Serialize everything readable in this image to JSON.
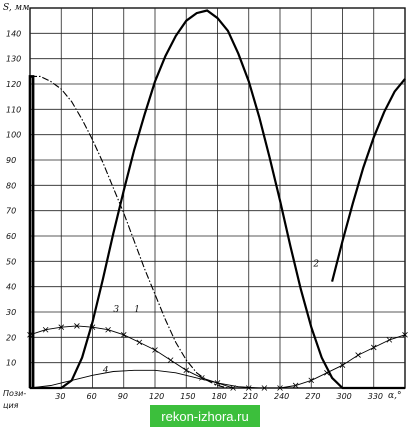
{
  "chart_data": {
    "type": "line",
    "ylabel": "S, мм",
    "xlabel": "α,°",
    "x_axis_caption": "Пози-\nция",
    "xlim": [
      0,
      360
    ],
    "ylim": [
      0,
      150
    ],
    "xticks": [
      30,
      60,
      90,
      120,
      150,
      180,
      210,
      240,
      270,
      300,
      330
    ],
    "yticks": [
      10,
      20,
      30,
      40,
      50,
      60,
      70,
      80,
      90,
      100,
      110,
      120,
      130,
      140
    ],
    "grid": true,
    "series": [
      {
        "name": "1",
        "label_at": [
          100,
          30
        ],
        "style": "dash-dot",
        "x": [
          0,
          10,
          20,
          30,
          40,
          50,
          60,
          70,
          80,
          90,
          100,
          110,
          120,
          130,
          140,
          150,
          160,
          170,
          180,
          190,
          200,
          210
        ],
        "y": [
          123,
          123,
          121,
          118,
          113,
          106,
          98,
          89,
          79,
          69,
          58,
          47,
          37,
          27,
          18,
          11,
          6,
          3,
          1,
          0,
          0,
          0
        ]
      },
      {
        "name": "2",
        "label_at": [
          272,
          48
        ],
        "style": "solid",
        "x": [
          0,
          30,
          40,
          50,
          60,
          70,
          80,
          90,
          100,
          110,
          120,
          130,
          140,
          150,
          160,
          170,
          180,
          190,
          200,
          210,
          220,
          230,
          240,
          250,
          260,
          270,
          280,
          290,
          300,
          310,
          320,
          330,
          340,
          350,
          360
        ],
        "y": [
          0,
          0,
          3,
          12,
          26,
          43,
          61,
          78,
          94,
          108,
          121,
          131,
          139,
          145,
          148,
          149,
          146,
          141,
          132,
          121,
          107,
          91,
          74,
          56,
          39,
          24,
          12,
          4,
          0,
          0,
          0,
          0,
          0,
          0,
          0
        ]
      },
      {
        "name": "2b",
        "style": "solid",
        "x": [
          290,
          300,
          310,
          320,
          330,
          340,
          350,
          360
        ],
        "y": [
          42,
          58,
          73,
          87,
          99,
          109,
          117,
          122
        ]
      },
      {
        "name": "3",
        "label_at": [
          80,
          30
        ],
        "style": "cross-marked",
        "x": [
          0,
          15,
          30,
          45,
          60,
          75,
          90,
          105,
          120,
          135,
          150,
          165,
          180,
          195,
          210,
          225,
          240,
          255,
          270,
          285,
          300,
          315,
          330,
          345,
          360
        ],
        "y": [
          21,
          23,
          24,
          24.5,
          24,
          23,
          21,
          18,
          15,
          11,
          7,
          4,
          2,
          0,
          0,
          0,
          0,
          1,
          3,
          6,
          9,
          13,
          16,
          19,
          21
        ]
      },
      {
        "name": "4",
        "label_at": [
          70,
          6
        ],
        "style": "thin",
        "x": [
          0,
          20,
          40,
          60,
          80,
          100,
          120,
          140,
          160,
          180,
          200,
          220,
          240,
          260,
          280,
          300,
          320,
          340,
          360
        ],
        "y": [
          0,
          1,
          3,
          5,
          6.5,
          7,
          7,
          6,
          4,
          2,
          0.5,
          0,
          0,
          0,
          0,
          0,
          0,
          0,
          0
        ]
      },
      {
        "name": "vertical-drop",
        "style": "bold",
        "x": [
          0,
          0,
          3,
          3
        ],
        "y": [
          0,
          123,
          123,
          0
        ]
      }
    ]
  },
  "watermark": {
    "text": "rekon-izhora.ru",
    "color": "#3cbf3c"
  }
}
